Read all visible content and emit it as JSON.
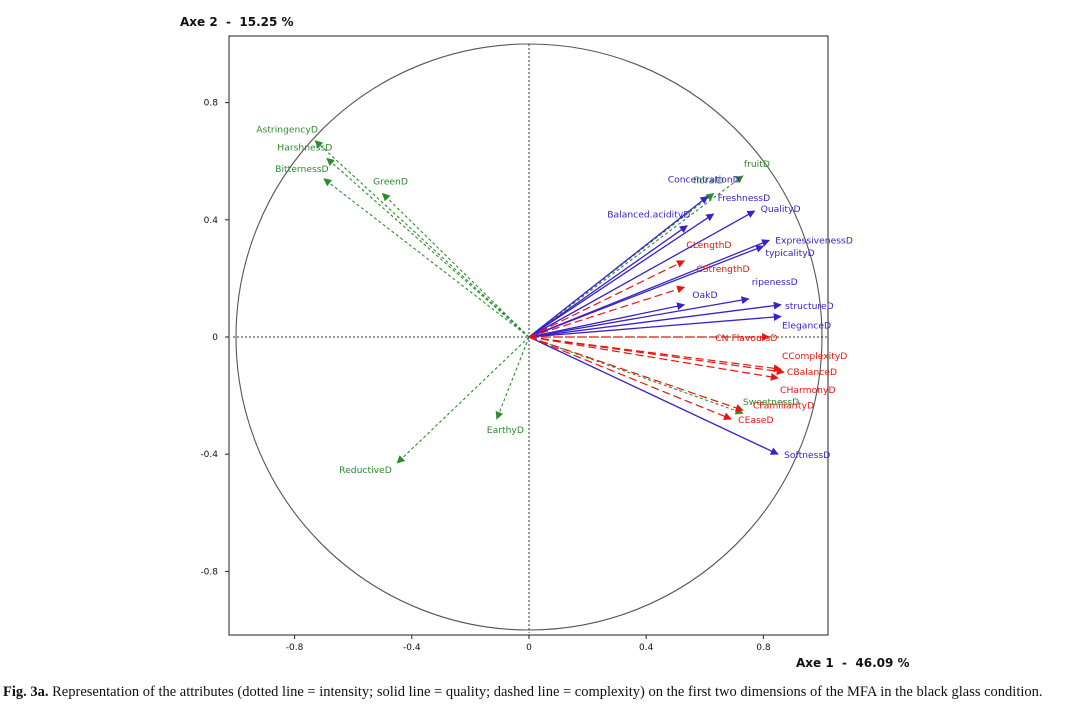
{
  "chart_data": {
    "type": "scatter",
    "subtype": "correlation-circle",
    "xlabel": "Axe 1  -  46.09 %",
    "ylabel": "Axe 2  -  15.25 %",
    "xlim": [
      -1.01,
      1.02
    ],
    "ylim": [
      -1.01,
      1.0
    ],
    "xticks": [
      -0.8,
      -0.4,
      0,
      0.4,
      0.8
    ],
    "yticks": [
      0.8,
      0.4,
      0,
      -0.4,
      -0.8
    ],
    "xtick_labels": [
      "-0.8",
      "-0.4",
      "0",
      "0.4",
      "0.8"
    ],
    "ytick_labels": [
      "0.8",
      "0.4",
      "0",
      "-0.4",
      "-0.8"
    ],
    "unit_circle": true,
    "legend": {
      "intensity": "dotted line, green",
      "quality": "solid line, blue",
      "complexity": "dashed line, red"
    },
    "colors": {
      "intensity": "#2e8b2e",
      "quality": "#3a22c8",
      "complexity": "#e8150f",
      "circle": "#444444"
    },
    "series": [
      {
        "name": "intensity",
        "vectors": [
          {
            "label": "AstringencyD",
            "x": -0.73,
            "y": 0.67
          },
          {
            "label": "HarshnessD",
            "x": -0.69,
            "y": 0.61
          },
          {
            "label": "BitternessD",
            "x": -0.7,
            "y": 0.54
          },
          {
            "label": "GreenD",
            "x": -0.5,
            "y": 0.49
          },
          {
            "label": "fruitD",
            "x": 0.73,
            "y": 0.55
          },
          {
            "label": "floralD",
            "x": 0.63,
            "y": 0.49
          },
          {
            "label": "SweetnessD",
            "x": 0.73,
            "y": -0.26
          },
          {
            "label": "EarthyD",
            "x": -0.11,
            "y": -0.28
          },
          {
            "label": "ReductiveD",
            "x": -0.45,
            "y": -0.43
          }
        ]
      },
      {
        "name": "quality",
        "vectors": [
          {
            "label": "ConcentrationD",
            "x": 0.61,
            "y": 0.48
          },
          {
            "label": "FreshnessD",
            "x": 0.63,
            "y": 0.42
          },
          {
            "label": "Balanced.acidityD",
            "x": 0.54,
            "y": 0.38
          },
          {
            "label": "QualityD",
            "x": 0.77,
            "y": 0.43
          },
          {
            "label": "ExpressivenessD",
            "x": 0.82,
            "y": 0.33
          },
          {
            "label": "typicalityD",
            "x": 0.8,
            "y": 0.31
          },
          {
            "label": "ripenessD",
            "x": 0.75,
            "y": 0.13
          },
          {
            "label": "OakD",
            "x": 0.53,
            "y": 0.11
          },
          {
            "label": "structureD",
            "x": 0.86,
            "y": 0.11
          },
          {
            "label": "EleganceD",
            "x": 0.86,
            "y": 0.07
          },
          {
            "label": "SoftnessD",
            "x": 0.85,
            "y": -0.4
          }
        ]
      },
      {
        "name": "complexity",
        "vectors": [
          {
            "label": "CLengthD",
            "x": 0.53,
            "y": 0.26
          },
          {
            "label": "CStrengthD",
            "x": 0.53,
            "y": 0.17
          },
          {
            "label": "CN FlavoursD",
            "x": 0.82,
            "y": 0.0
          },
          {
            "label": "CComplexityD",
            "x": 0.86,
            "y": -0.11
          },
          {
            "label": "CBalanceD",
            "x": 0.87,
            "y": -0.12
          },
          {
            "label": "CHarmonyD",
            "x": 0.85,
            "y": -0.14
          },
          {
            "label": "CFamiliarityD",
            "x": 0.73,
            "y": -0.25
          },
          {
            "label": "CEaseD",
            "x": 0.69,
            "y": -0.28
          }
        ]
      }
    ]
  },
  "caption": {
    "label": "Fig. 3a.",
    "text": " Representation of the attributes (dotted line = intensity; solid line = quality; dashed line = complexity) on the first two dimensions of the MFA in the black glass condition."
  }
}
